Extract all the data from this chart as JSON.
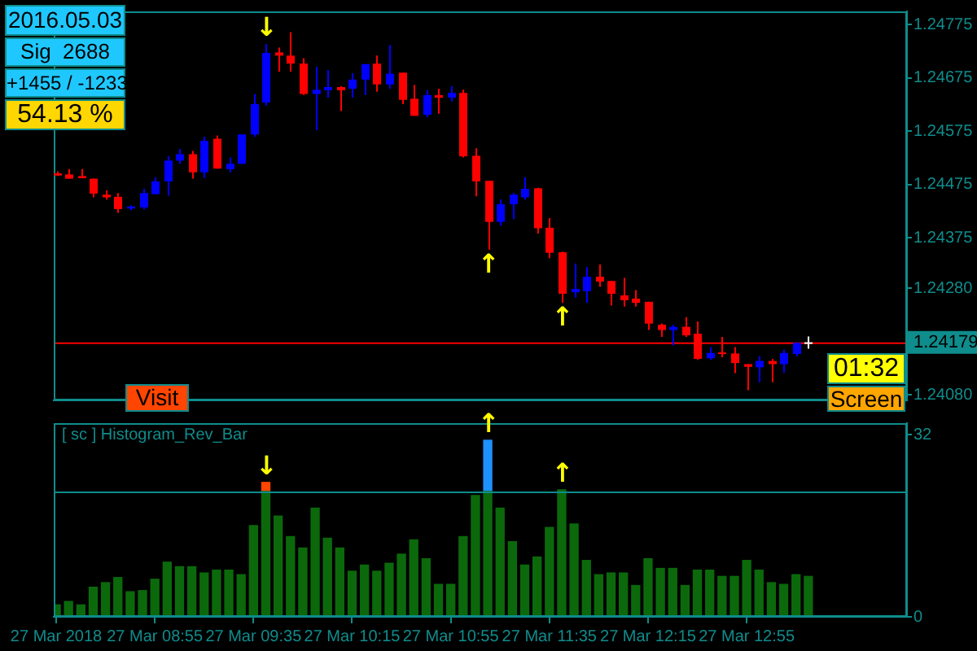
{
  "chart_data": [
    {
      "type": "candlestick",
      "x": [
        "2018-03-27T08:15",
        "2018-03-27T08:20",
        "2018-03-27T08:25",
        "2018-03-27T08:30",
        "2018-03-27T08:35",
        "2018-03-27T08:40",
        "2018-03-27T08:45",
        "2018-03-27T08:50",
        "2018-03-27T08:55",
        "2018-03-27T09:00",
        "2018-03-27T09:05",
        "2018-03-27T09:10",
        "2018-03-27T09:15",
        "2018-03-27T09:20",
        "2018-03-27T09:25",
        "2018-03-27T09:30",
        "2018-03-27T09:35",
        "2018-03-27T09:40",
        "2018-03-27T09:45",
        "2018-03-27T09:50",
        "2018-03-27T09:55",
        "2018-03-27T10:00",
        "2018-03-27T10:05",
        "2018-03-27T10:10",
        "2018-03-27T10:15",
        "2018-03-27T10:20",
        "2018-03-27T10:25",
        "2018-03-27T10:30",
        "2018-03-27T10:35",
        "2018-03-27T10:40",
        "2018-03-27T10:45",
        "2018-03-27T10:50",
        "2018-03-27T10:55",
        "2018-03-27T11:00",
        "2018-03-27T11:05",
        "2018-03-27T11:10",
        "2018-03-27T11:15",
        "2018-03-27T11:20",
        "2018-03-27T11:25",
        "2018-03-27T11:30",
        "2018-03-27T11:35",
        "2018-03-27T11:40",
        "2018-03-27T11:45",
        "2018-03-27T11:50",
        "2018-03-27T11:55",
        "2018-03-27T12:00",
        "2018-03-27T12:05",
        "2018-03-27T12:10",
        "2018-03-27T12:15",
        "2018-03-27T12:20",
        "2018-03-27T12:25",
        "2018-03-27T12:30",
        "2018-03-27T12:35",
        "2018-03-27T12:40",
        "2018-03-27T12:45",
        "2018-03-27T12:50",
        "2018-03-27T12:55",
        "2018-03-27T13:00",
        "2018-03-27T13:05",
        "2018-03-27T13:10",
        "2018-03-27T13:15",
        "2018-03-27T13:20"
      ],
      "ohlc": [
        [
          1.24496,
          1.245,
          1.24491,
          1.24492
        ],
        [
          1.24494,
          1.24504,
          1.24486,
          1.24486
        ],
        [
          1.24491,
          1.24504,
          1.24487,
          1.24487
        ],
        [
          1.24486,
          1.24486,
          1.24451,
          1.24458
        ],
        [
          1.24456,
          1.24464,
          1.24447,
          1.24451
        ],
        [
          1.24452,
          1.24459,
          1.24422,
          1.24429
        ],
        [
          1.2443,
          1.24436,
          1.24427,
          1.24434
        ],
        [
          1.24432,
          1.24467,
          1.24428,
          1.24459
        ],
        [
          1.24457,
          1.24489,
          1.24457,
          1.24481
        ],
        [
          1.24481,
          1.24528,
          1.24454,
          1.2452
        ],
        [
          1.2452,
          1.24542,
          1.24514,
          1.24532
        ],
        [
          1.24532,
          1.24538,
          1.24486,
          1.24498
        ],
        [
          1.24498,
          1.24565,
          1.24487,
          1.24557
        ],
        [
          1.24561,
          1.24567,
          1.24505,
          1.24505
        ],
        [
          1.24504,
          1.24526,
          1.24498,
          1.24514
        ],
        [
          1.24514,
          1.24569,
          1.24514,
          1.24569
        ],
        [
          1.24569,
          1.24645,
          1.24565,
          1.24626
        ],
        [
          1.24629,
          1.24739,
          1.24623,
          1.24722
        ],
        [
          1.24723,
          1.24732,
          1.24687,
          1.24717
        ],
        [
          1.24717,
          1.24761,
          1.24687,
          1.24702
        ],
        [
          1.24702,
          1.24712,
          1.24643,
          1.24645
        ],
        [
          1.24645,
          1.24696,
          1.24577,
          1.24653
        ],
        [
          1.24652,
          1.2469,
          1.24638,
          1.24658
        ],
        [
          1.24658,
          1.2466,
          1.24613,
          1.24652
        ],
        [
          1.24655,
          1.24684,
          1.24638,
          1.24672
        ],
        [
          1.24672,
          1.24701,
          1.24643,
          1.24701
        ],
        [
          1.24702,
          1.24717,
          1.24649,
          1.24663
        ],
        [
          1.24663,
          1.24737,
          1.24655,
          1.24683
        ],
        [
          1.24685,
          1.24685,
          1.24626,
          1.24634
        ],
        [
          1.24636,
          1.24662,
          1.24604,
          1.24604
        ],
        [
          1.24606,
          1.24652,
          1.24601,
          1.24643
        ],
        [
          1.24643,
          1.24655,
          1.24608,
          1.24638
        ],
        [
          1.24638,
          1.2466,
          1.24631,
          1.24647
        ],
        [
          1.24647,
          1.24653,
          1.24526,
          1.24528
        ],
        [
          1.24529,
          1.24543,
          1.24453,
          1.24481
        ],
        [
          1.24482,
          1.24482,
          1.24353,
          1.24405
        ],
        [
          1.24405,
          1.24447,
          1.24398,
          1.24438
        ],
        [
          1.24438,
          1.24459,
          1.2441,
          1.24456
        ],
        [
          1.24451,
          1.24489,
          1.24447,
          1.24467
        ],
        [
          1.24468,
          1.24469,
          1.24383,
          1.24393
        ],
        [
          1.24394,
          1.24412,
          1.24337,
          1.24347
        ],
        [
          1.24348,
          1.24349,
          1.24253,
          1.2427
        ],
        [
          1.24273,
          1.24327,
          1.24263,
          1.24279
        ],
        [
          1.24275,
          1.2432,
          1.24253,
          1.24302
        ],
        [
          1.24302,
          1.24325,
          1.24283,
          1.24293
        ],
        [
          1.24294,
          1.24294,
          1.24248,
          1.2427
        ],
        [
          1.24267,
          1.243,
          1.24246,
          1.24258
        ],
        [
          1.24261,
          1.24277,
          1.24246,
          1.24253
        ],
        [
          1.24255,
          1.24255,
          1.24202,
          1.24214
        ],
        [
          1.24212,
          1.24214,
          1.24189,
          1.24202
        ],
        [
          1.24202,
          1.24212,
          1.24173,
          1.24208
        ],
        [
          1.24208,
          1.24226,
          1.24189,
          1.24192
        ],
        [
          1.24195,
          1.24218,
          1.24146,
          1.24148
        ],
        [
          1.24149,
          1.2417,
          1.24146,
          1.24159
        ],
        [
          1.2416,
          1.24189,
          1.24151,
          1.24157
        ],
        [
          1.24158,
          1.2417,
          1.24121,
          1.2414
        ],
        [
          1.24138,
          1.24138,
          1.24089,
          1.24133
        ],
        [
          1.24132,
          1.24153,
          1.24104,
          1.24144
        ],
        [
          1.24144,
          1.24148,
          1.24104,
          1.24138
        ],
        [
          1.24138,
          1.24165,
          1.24122,
          1.24159
        ],
        [
          1.24157,
          1.24178,
          1.24153,
          1.24178
        ],
        [
          1.24179,
          1.2419,
          1.24167,
          1.24179
        ]
      ],
      "colors": [
        "#ff0000",
        "#ff0000",
        "#ff0000",
        "#ff0000",
        "#ff0000",
        "#ff0000",
        "#0000ff",
        "#0000ff",
        "#0000ff",
        "#0000ff",
        "#0000ff",
        "#ff0000",
        "#0000ff",
        "#ff0000",
        "#0000ff",
        "#0000ff",
        "#0000ff",
        "#0000ff",
        "#ff0000",
        "#ff0000",
        "#ff0000",
        "#0000ff",
        "#0000ff",
        "#ff0000",
        "#0000ff",
        "#0000ff",
        "#ff0000",
        "#0000ff",
        "#ff0000",
        "#ff0000",
        "#0000ff",
        "#ff0000",
        "#0000ff",
        "#ff0000",
        "#ff0000",
        "#ff0000",
        "#0000ff",
        "#0000ff",
        "#0000ff",
        "#ff0000",
        "#ff0000",
        "#ff0000",
        "#0000ff",
        "#0000ff",
        "#ff0000",
        "#ff0000",
        "#ff0000",
        "#ff0000",
        "#ff0000",
        "#ff0000",
        "#0000ff",
        "#ff0000",
        "#ff0000",
        "#0000ff",
        "#ff0000",
        "#ff0000",
        "#ff0000",
        "#0000ff",
        "#ff0000",
        "#0000ff",
        "#0000ff",
        "#ffffff"
      ],
      "xlim": [
        "2018-03-27T08:14",
        "2018-03-27T14:00"
      ],
      "ylim": [
        1.2407,
        1.248
      ],
      "yticks": [
        1.24775,
        1.24675,
        1.24575,
        1.24475,
        1.24375,
        {
          "value": 1.2428,
          "label": "1.24280"
        },
        {
          "value": 1.2408,
          "label": "1.24080"
        }
      ],
      "tick_labels": "y",
      "ref_lines": [
        {
          "axis": "y",
          "value": 1.24179,
          "label": "1.24179",
          "color": "#ff0000"
        }
      ],
      "annotations": [
        "2016.05.03",
        "Sig  2688",
        "+1455 / -1233",
        "54.13 %",
        "Visit",
        "01:32",
        "Screen",
        {
          "text": "↓",
          "x": "2018-03-27T09:40",
          "y": 1.24739
        },
        {
          "text": "↑",
          "x": "2018-03-27T11:10",
          "y": 1.24353
        },
        {
          "text": "↑",
          "x": "2018-03-27T11:40",
          "y": 1.24253
        }
      ]
    },
    {
      "type": "bar",
      "stacked": true,
      "title": "[ sc ] Histogram_Rev_Bar",
      "x": [
        "2018-03-27T08:15",
        "2018-03-27T08:20",
        "2018-03-27T08:25",
        "2018-03-27T08:30",
        "2018-03-27T08:35",
        "2018-03-27T08:40",
        "2018-03-27T08:45",
        "2018-03-27T08:50",
        "2018-03-27T08:55",
        "2018-03-27T09:00",
        "2018-03-27T09:05",
        "2018-03-27T09:10",
        "2018-03-27T09:15",
        "2018-03-27T09:20",
        "2018-03-27T09:25",
        "2018-03-27T09:30",
        "2018-03-27T09:35",
        "2018-03-27T09:40",
        "2018-03-27T09:45",
        "2018-03-27T09:50",
        "2018-03-27T09:55",
        "2018-03-27T10:00",
        "2018-03-27T10:05",
        "2018-03-27T10:10",
        "2018-03-27T10:15",
        "2018-03-27T10:20",
        "2018-03-27T10:25",
        "2018-03-27T10:30",
        "2018-03-27T10:35",
        "2018-03-27T10:40",
        "2018-03-27T10:45",
        "2018-03-27T10:50",
        "2018-03-27T10:55",
        "2018-03-27T11:00",
        "2018-03-27T11:05",
        "2018-03-27T11:10",
        "2018-03-27T11:15",
        "2018-03-27T11:20",
        "2018-03-27T11:25",
        "2018-03-27T11:30",
        "2018-03-27T11:35",
        "2018-03-27T11:40",
        "2018-03-27T11:45",
        "2018-03-27T11:50",
        "2018-03-27T11:55",
        "2018-03-27T12:00",
        "2018-03-27T12:05",
        "2018-03-27T12:10",
        "2018-03-27T12:15",
        "2018-03-27T12:20",
        "2018-03-27T12:25",
        "2018-03-27T12:30",
        "2018-03-27T12:35",
        "2018-03-27T12:40",
        "2018-03-27T12:45",
        "2018-03-27T12:50",
        "2018-03-27T12:55",
        "2018-03-27T13:00",
        "2018-03-27T13:05",
        "2018-03-27T13:10",
        "2018-03-27T13:15",
        "2018-03-27T13:20"
      ],
      "series": [
        {
          "color": "#0b690b",
          "values": [
            2.1,
            2.7,
            2.1,
            5.2,
            6.0,
            6.9,
            4.4,
            4.6,
            6.6,
            9.6,
            8.8,
            8.8,
            7.7,
            8.2,
            8.2,
            7.4,
            16.0,
            22,
            17.7,
            14.1,
            12.1,
            19.1,
            13.8,
            12.1,
            8.0,
            9.1,
            8.0,
            9.4,
            11.0,
            13.5,
            10.2,
            5.7,
            5.7,
            14.1,
            21.3,
            22,
            19.1,
            13.2,
            9.1,
            10.5,
            15.7,
            22.3,
            16.3,
            9.9,
            7.4,
            7.7,
            7.7,
            5.5,
            10.2,
            8.5,
            8.5,
            5.5,
            8.2,
            8.2,
            7.1,
            7.1,
            9.9,
            8.2,
            6.0,
            5.7,
            7.4,
            7.1
          ]
        },
        {
          "color": "#ff4500",
          "values": [
            null,
            null,
            null,
            null,
            null,
            null,
            null,
            null,
            null,
            null,
            null,
            null,
            null,
            null,
            null,
            null,
            null,
            1.6,
            null,
            null,
            null,
            null,
            null,
            null,
            null,
            null,
            null,
            null,
            null,
            null,
            null,
            null,
            null,
            null,
            null,
            null,
            null,
            null,
            null,
            null,
            null,
            null,
            null,
            null,
            null,
            null,
            null,
            null,
            null,
            null,
            null,
            null,
            null,
            null,
            null,
            null,
            null,
            null,
            null,
            null,
            null,
            null
          ]
        },
        {
          "color": "#1e90ff",
          "values": [
            null,
            null,
            null,
            null,
            null,
            null,
            null,
            null,
            null,
            null,
            null,
            null,
            null,
            null,
            null,
            null,
            null,
            null,
            null,
            null,
            null,
            null,
            null,
            null,
            null,
            null,
            null,
            null,
            null,
            null,
            null,
            null,
            null,
            null,
            null,
            9.0,
            null,
            null,
            null,
            null,
            null,
            null,
            null,
            null,
            null,
            null,
            null,
            null,
            null,
            null,
            null,
            null,
            null,
            null,
            null,
            null,
            null,
            null,
            null,
            null,
            null,
            null
          ]
        }
      ],
      "xlim": [
        "2018-03-27T08:14",
        "2018-03-27T14:00"
      ],
      "xticks": [
        {
          "value": "2018-03-27T08:15",
          "label": "27 Mar 2018"
        },
        {
          "value": "2018-03-27T08:55",
          "label": "27 Mar 08:55"
        },
        {
          "value": "2018-03-27T09:35",
          "label": "27 Mar 09:35"
        },
        {
          "value": "2018-03-27T10:15",
          "label": "27 Mar 10:15"
        },
        {
          "value": "2018-03-27T10:55",
          "label": "27 Mar 10:55"
        },
        {
          "value": "2018-03-27T11:35",
          "label": "27 Mar 11:35"
        },
        {
          "value": "2018-03-27T12:15",
          "label": "27 Mar 12:15"
        },
        {
          "value": "2018-03-27T12:55",
          "label": "27 Mar 12:55"
        }
      ],
      "ylim": [
        0,
        34
      ],
      "yticks": [
        0,
        32
      ],
      "ref_lines": [
        {
          "axis": "y",
          "value": 22,
          "color": "#0f8c8c"
        }
      ],
      "annotations": [
        {
          "text": "↓",
          "x": "2018-03-27T09:40",
          "y": 23.6
        },
        {
          "text": "↑",
          "x": "2018-03-27T11:10",
          "y": 31
        },
        {
          "text": "↑",
          "x": "2018-03-27T11:40",
          "y": 22.3
        }
      ]
    }
  ]
}
